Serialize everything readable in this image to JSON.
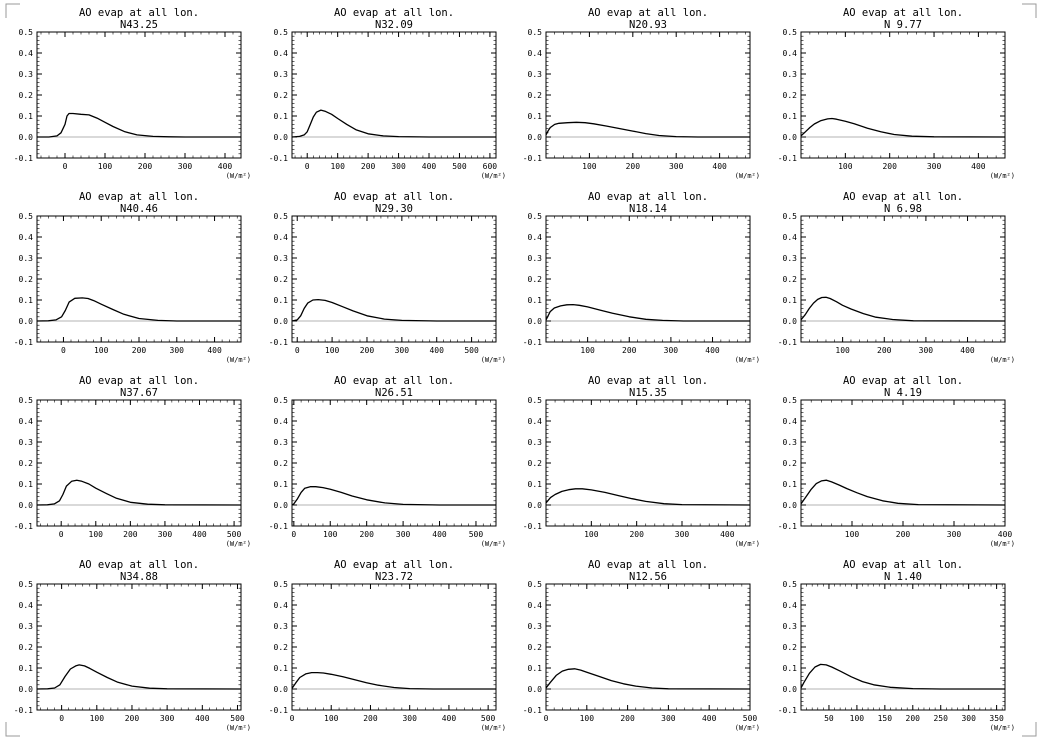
{
  "chart_data": [
    {
      "type": "line",
      "title": "AO evap at all lon.",
      "subtitle": "N43.25",
      "xlim": [
        -70,
        440
      ],
      "xticks": [
        0,
        100,
        200,
        300,
        400
      ],
      "unit_label": "(W/m²)",
      "ylim": [
        -0.1,
        0.5
      ],
      "yticks": [
        "-0.1",
        "0.0",
        "0.1",
        "0.2",
        "0.3",
        "0.4",
        "0.5"
      ],
      "series": [
        {
          "x": [
            -70,
            -40,
            -20,
            -10,
            0,
            5,
            10,
            20,
            40,
            60,
            80,
            100,
            120,
            150,
            180,
            220,
            260,
            300,
            440
          ],
          "y": [
            0,
            0,
            0.005,
            0.02,
            0.06,
            0.1,
            0.112,
            0.112,
            0.108,
            0.105,
            0.09,
            0.07,
            0.05,
            0.025,
            0.01,
            0.003,
            0.001,
            0,
            0
          ]
        }
      ]
    },
    {
      "type": "line",
      "title": "AO evap at all lon.",
      "subtitle": "N32.09",
      "xlim": [
        -50,
        620
      ],
      "xticks": [
        0,
        100,
        200,
        300,
        400,
        500,
        600
      ],
      "unit_label": "(W/m²)",
      "ylim": [
        -0.1,
        0.5
      ],
      "yticks": [
        "-0.1",
        "0.0",
        "0.1",
        "0.2",
        "0.3",
        "0.4",
        "0.5"
      ],
      "series": [
        {
          "x": [
            -50,
            -25,
            -10,
            0,
            10,
            20,
            30,
            45,
            60,
            80,
            100,
            130,
            160,
            200,
            250,
            300,
            400,
            620
          ],
          "y": [
            0,
            0.003,
            0.01,
            0.025,
            0.06,
            0.095,
            0.118,
            0.128,
            0.122,
            0.108,
            0.088,
            0.06,
            0.035,
            0.015,
            0.005,
            0.002,
            0,
            0
          ]
        }
      ]
    },
    {
      "type": "line",
      "title": "AO evap at all lon.",
      "subtitle": "N20.93",
      "xlim": [
        0,
        470
      ],
      "xticks": [
        100,
        200,
        300,
        400
      ],
      "unit_label": "(W/m²)",
      "ylim": [
        -0.1,
        0.5
      ],
      "yticks": [
        "-0.1",
        "0.0",
        "0.1",
        "0.2",
        "0.3",
        "0.4",
        "0.5"
      ],
      "series": [
        {
          "x": [
            0,
            5,
            10,
            20,
            30,
            50,
            70,
            90,
            110,
            140,
            170,
            200,
            230,
            260,
            300,
            350,
            470
          ],
          "y": [
            0.01,
            0.03,
            0.045,
            0.06,
            0.065,
            0.068,
            0.07,
            0.068,
            0.063,
            0.052,
            0.04,
            0.028,
            0.016,
            0.007,
            0.002,
            0,
            0
          ]
        }
      ]
    },
    {
      "type": "line",
      "title": "AO evap at all lon.",
      "subtitle": "N 9.77",
      "xlim": [
        0,
        460
      ],
      "xticks": [
        100,
        200,
        300,
        400
      ],
      "unit_label": "(W/m²)",
      "ylim": [
        -0.1,
        0.5
      ],
      "yticks": [
        "-0.1",
        "0.0",
        "0.1",
        "0.2",
        "0.3",
        "0.4",
        "0.5"
      ],
      "series": [
        {
          "x": [
            0,
            10,
            20,
            30,
            45,
            60,
            70,
            80,
            100,
            120,
            150,
            180,
            210,
            250,
            300,
            460
          ],
          "y": [
            0.005,
            0.025,
            0.045,
            0.062,
            0.078,
            0.086,
            0.088,
            0.085,
            0.075,
            0.063,
            0.042,
            0.025,
            0.012,
            0.004,
            0.001,
            0
          ]
        }
      ]
    },
    {
      "type": "line",
      "title": "AO evap at all lon.",
      "subtitle": "N40.46",
      "xlim": [
        -70,
        470
      ],
      "xticks": [
        0,
        100,
        200,
        300,
        400
      ],
      "unit_label": "(W/m²)",
      "ylim": [
        -0.1,
        0.5
      ],
      "yticks": [
        "-0.1",
        "0.0",
        "0.1",
        "0.2",
        "0.3",
        "0.4",
        "0.5"
      ],
      "series": [
        {
          "x": [
            -70,
            -40,
            -20,
            -5,
            5,
            15,
            30,
            50,
            65,
            80,
            100,
            130,
            160,
            200,
            250,
            300,
            470
          ],
          "y": [
            0,
            0.001,
            0.005,
            0.02,
            0.05,
            0.09,
            0.108,
            0.11,
            0.107,
            0.097,
            0.08,
            0.055,
            0.032,
            0.012,
            0.003,
            0,
            0
          ]
        }
      ]
    },
    {
      "type": "line",
      "title": "AO evap at all lon.",
      "subtitle": "N29.30",
      "xlim": [
        -15,
        570
      ],
      "xticks": [
        0,
        100,
        200,
        300,
        400,
        500
      ],
      "unit_label": "(W/m²)",
      "ylim": [
        -0.1,
        0.5
      ],
      "yticks": [
        "-0.1",
        "0.0",
        "0.1",
        "0.2",
        "0.3",
        "0.4",
        "0.5"
      ],
      "series": [
        {
          "x": [
            -15,
            0,
            10,
            20,
            30,
            45,
            60,
            80,
            100,
            130,
            160,
            200,
            250,
            300,
            400,
            570
          ],
          "y": [
            0,
            0.005,
            0.025,
            0.06,
            0.085,
            0.1,
            0.102,
            0.098,
            0.088,
            0.068,
            0.048,
            0.025,
            0.009,
            0.003,
            0,
            0
          ]
        }
      ]
    },
    {
      "type": "line",
      "title": "AO evap at all lon.",
      "subtitle": "N18.14",
      "xlim": [
        0,
        490
      ],
      "xticks": [
        100,
        200,
        300,
        400
      ],
      "unit_label": "(W/m²)",
      "ylim": [
        -0.1,
        0.5
      ],
      "yticks": [
        "-0.1",
        "0.0",
        "0.1",
        "0.2",
        "0.3",
        "0.4",
        "0.5"
      ],
      "series": [
        {
          "x": [
            0,
            5,
            10,
            20,
            35,
            50,
            65,
            80,
            100,
            130,
            160,
            200,
            240,
            280,
            330,
            490
          ],
          "y": [
            0.005,
            0.025,
            0.045,
            0.062,
            0.072,
            0.077,
            0.078,
            0.075,
            0.067,
            0.052,
            0.037,
            0.02,
            0.008,
            0.003,
            0,
            0
          ]
        }
      ]
    },
    {
      "type": "line",
      "title": "AO evap at all lon.",
      "subtitle": "N 6.98",
      "xlim": [
        0,
        490
      ],
      "xticks": [
        100,
        200,
        300,
        400
      ],
      "unit_label": "(W/m²)",
      "ylim": [
        -0.1,
        0.5
      ],
      "yticks": [
        "-0.1",
        "0.0",
        "0.1",
        "0.2",
        "0.3",
        "0.4",
        "0.5"
      ],
      "series": [
        {
          "x": [
            0,
            10,
            20,
            30,
            40,
            50,
            60,
            70,
            85,
            100,
            120,
            150,
            180,
            220,
            270,
            490
          ],
          "y": [
            0.005,
            0.03,
            0.06,
            0.085,
            0.103,
            0.112,
            0.113,
            0.107,
            0.092,
            0.075,
            0.057,
            0.035,
            0.018,
            0.007,
            0.001,
            0
          ]
        }
      ]
    },
    {
      "type": "line",
      "title": "AO evap at all lon.",
      "subtitle": "N37.67",
      "xlim": [
        -70,
        520
      ],
      "xticks": [
        0,
        100,
        200,
        300,
        400,
        500
      ],
      "unit_label": "(W/m²)",
      "ylim": [
        -0.1,
        0.5
      ],
      "yticks": [
        "-0.1",
        "0.0",
        "0.1",
        "0.2",
        "0.3",
        "0.4",
        "0.5"
      ],
      "series": [
        {
          "x": [
            -70,
            -40,
            -20,
            -5,
            5,
            15,
            30,
            45,
            60,
            80,
            100,
            130,
            160,
            200,
            250,
            300,
            520
          ],
          "y": [
            0,
            0.001,
            0.005,
            0.02,
            0.05,
            0.09,
            0.113,
            0.118,
            0.113,
            0.1,
            0.08,
            0.055,
            0.032,
            0.013,
            0.004,
            0.001,
            0
          ]
        }
      ]
    },
    {
      "type": "line",
      "title": "AO evap at all lon.",
      "subtitle": "N26.51",
      "xlim": [
        -5,
        555
      ],
      "xticks": [
        0,
        100,
        200,
        300,
        400,
        500
      ],
      "unit_label": "(W/m²)",
      "ylim": [
        -0.1,
        0.5
      ],
      "yticks": [
        "-0.1",
        "0.0",
        "0.1",
        "0.2",
        "0.3",
        "0.4",
        "0.5"
      ],
      "series": [
        {
          "x": [
            -5,
            0,
            10,
            20,
            30,
            45,
            60,
            80,
            100,
            130,
            160,
            200,
            250,
            300,
            400,
            555
          ],
          "y": [
            0,
            0.005,
            0.03,
            0.06,
            0.08,
            0.087,
            0.087,
            0.083,
            0.075,
            0.06,
            0.043,
            0.025,
            0.01,
            0.003,
            0,
            0
          ]
        }
      ]
    },
    {
      "type": "line",
      "title": "AO evap at all lon.",
      "subtitle": "N15.35",
      "xlim": [
        0,
        450
      ],
      "xticks": [
        100,
        200,
        300,
        400
      ],
      "unit_label": "(W/m²)",
      "ylim": [
        -0.1,
        0.5
      ],
      "yticks": [
        "-0.1",
        "0.0",
        "0.1",
        "0.2",
        "0.3",
        "0.4",
        "0.5"
      ],
      "series": [
        {
          "x": [
            0,
            10,
            20,
            35,
            50,
            65,
            80,
            100,
            130,
            160,
            190,
            220,
            260,
            300,
            450
          ],
          "y": [
            0.01,
            0.035,
            0.05,
            0.065,
            0.073,
            0.077,
            0.077,
            0.072,
            0.06,
            0.045,
            0.03,
            0.017,
            0.006,
            0.002,
            0
          ]
        }
      ]
    },
    {
      "type": "line",
      "title": "AO evap at all lon.",
      "subtitle": "N 4.19",
      "xlim": [
        0,
        400
      ],
      "xticks": [
        100,
        200,
        300,
        400
      ],
      "unit_label": "(W/m²)",
      "ylim": [
        -0.1,
        0.5
      ],
      "yticks": [
        "-0.1",
        "0.0",
        "0.1",
        "0.2",
        "0.3",
        "0.4",
        "0.5"
      ],
      "series": [
        {
          "x": [
            0,
            10,
            20,
            30,
            40,
            50,
            60,
            75,
            90,
            110,
            130,
            160,
            190,
            230,
            400
          ],
          "y": [
            0.005,
            0.04,
            0.075,
            0.102,
            0.115,
            0.118,
            0.11,
            0.095,
            0.078,
            0.058,
            0.04,
            0.02,
            0.008,
            0.002,
            0
          ]
        }
      ]
    },
    {
      "type": "line",
      "title": "AO evap at all lon.",
      "subtitle": "N34.88",
      "xlim": [
        -70,
        510
      ],
      "xticks": [
        0,
        100,
        200,
        300,
        400,
        500
      ],
      "unit_label": "(W/m²)",
      "ylim": [
        -0.1,
        0.5
      ],
      "yticks": [
        "-0.1",
        "0.0",
        "0.1",
        "0.2",
        "0.3",
        "0.4",
        "0.5"
      ],
      "series": [
        {
          "x": [
            -70,
            -40,
            -20,
            -5,
            10,
            25,
            40,
            50,
            65,
            80,
            100,
            130,
            160,
            200,
            250,
            300,
            510
          ],
          "y": [
            0,
            0.001,
            0.005,
            0.02,
            0.06,
            0.095,
            0.11,
            0.115,
            0.11,
            0.098,
            0.08,
            0.055,
            0.032,
            0.014,
            0.004,
            0.001,
            0
          ]
        }
      ]
    },
    {
      "type": "line",
      "title": "AO evap at all lon.",
      "subtitle": "N23.72",
      "xlim": [
        0,
        520
      ],
      "xticks": [
        0,
        100,
        200,
        300,
        400,
        500
      ],
      "unit_label": "(W/m²)",
      "ylim": [
        -0.1,
        0.5
      ],
      "yticks": [
        "-0.1",
        "0.0",
        "0.1",
        "0.2",
        "0.3",
        "0.4",
        "0.5"
      ],
      "series": [
        {
          "x": [
            0,
            10,
            20,
            35,
            50,
            65,
            80,
            100,
            130,
            160,
            190,
            220,
            260,
            300,
            360,
            520
          ],
          "y": [
            0.003,
            0.03,
            0.055,
            0.072,
            0.078,
            0.078,
            0.076,
            0.07,
            0.058,
            0.044,
            0.03,
            0.018,
            0.007,
            0.002,
            0,
            0
          ]
        }
      ]
    },
    {
      "type": "line",
      "title": "AO evap at all lon.",
      "subtitle": "N12.56",
      "xlim": [
        0,
        500
      ],
      "xticks": [
        0,
        100,
        200,
        300,
        400,
        500
      ],
      "unit_label": "(W/m²)",
      "ylim": [
        -0.1,
        0.5
      ],
      "yticks": [
        "-0.1",
        "0.0",
        "0.1",
        "0.2",
        "0.3",
        "0.4",
        "0.5"
      ],
      "series": [
        {
          "x": [
            0,
            10,
            25,
            40,
            55,
            70,
            85,
            100,
            130,
            160,
            190,
            220,
            260,
            300,
            500
          ],
          "y": [
            0.005,
            0.03,
            0.065,
            0.085,
            0.094,
            0.096,
            0.09,
            0.08,
            0.06,
            0.04,
            0.025,
            0.014,
            0.005,
            0.001,
            0
          ]
        }
      ]
    },
    {
      "type": "line",
      "title": "AO evap at all lon.",
      "subtitle": "N 1.40",
      "xlim": [
        0,
        365
      ],
      "xticks": [
        50,
        100,
        150,
        200,
        250,
        300,
        350
      ],
      "unit_label": "(W/m²)",
      "ylim": [
        -0.1,
        0.5
      ],
      "yticks": [
        "-0.1",
        "0.0",
        "0.1",
        "0.2",
        "0.3",
        "0.4",
        "0.5"
      ],
      "series": [
        {
          "x": [
            0,
            5,
            15,
            25,
            35,
            45,
            55,
            70,
            90,
            110,
            130,
            160,
            200,
            250,
            365
          ],
          "y": [
            0.005,
            0.03,
            0.075,
            0.105,
            0.117,
            0.115,
            0.105,
            0.085,
            0.058,
            0.035,
            0.02,
            0.008,
            0.002,
            0,
            0
          ]
        }
      ]
    }
  ]
}
